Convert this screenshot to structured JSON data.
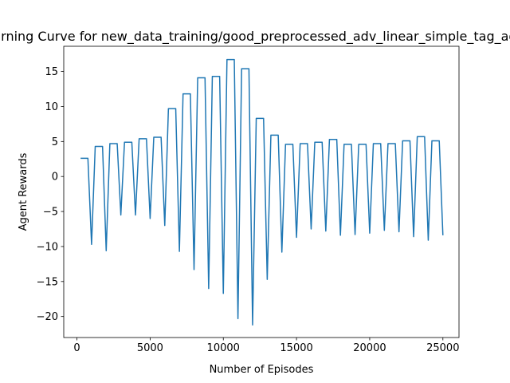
{
  "chart_data": {
    "type": "line",
    "title": "Learning Curve for new_data_training/good_preprocessed_adv_linear_simple_tag_agents",
    "xlabel": "Number of Episodes",
    "ylabel": "Agent Rewards",
    "xlim": [
      -900,
      26100
    ],
    "ylim": [
      -23.0,
      18.6
    ],
    "grid": false,
    "legend": "none",
    "series_color": "#1f77b4",
    "x_ticks": [
      0,
      5000,
      10000,
      15000,
      20000,
      25000
    ],
    "x_tick_labels": [
      "0",
      "5000",
      "10000",
      "15000",
      "20000",
      "25000"
    ],
    "y_ticks": [
      -20,
      -15,
      -10,
      -5,
      0,
      5,
      10,
      15
    ],
    "y_tick_labels": [
      "−20",
      "−15",
      "−10",
      "−5",
      "0",
      "5",
      "10",
      "15"
    ],
    "series": [
      {
        "x": [
          250,
          750,
          1000,
          1250,
          1750,
          2000,
          2250,
          2750,
          3000,
          3250,
          3750,
          4000,
          4250,
          4750,
          5000,
          5250,
          5750,
          6000,
          6250,
          6750,
          7000,
          7250,
          7750,
          8000,
          8250,
          8750,
          9000,
          9250,
          9750,
          10000,
          10250,
          10750,
          11000,
          11250,
          11750,
          12000,
          12250,
          12750,
          13000,
          13250,
          13750,
          14000,
          14250,
          14750,
          15000,
          15250,
          15750,
          16000,
          16250,
          16750,
          17000,
          17250,
          17750,
          18000,
          18250,
          18750,
          19000,
          19250,
          19750,
          20000,
          20250,
          20750,
          21000,
          21250,
          21750,
          22000,
          22250,
          22750,
          23000,
          23250,
          23750,
          24000,
          24250,
          24750,
          25000
        ],
        "values": [
          2.6,
          2.6,
          -9.7,
          4.3,
          4.3,
          -10.6,
          4.7,
          4.7,
          -5.5,
          4.9,
          4.9,
          -5.5,
          5.4,
          5.4,
          -6.0,
          5.6,
          5.6,
          -7.0,
          9.7,
          9.7,
          -10.7,
          11.8,
          11.8,
          -13.3,
          14.1,
          14.1,
          -16.0,
          14.3,
          14.3,
          -16.7,
          16.7,
          16.7,
          -20.3,
          15.4,
          15.4,
          -21.2,
          8.3,
          8.3,
          -14.7,
          5.9,
          5.9,
          -10.8,
          4.6,
          4.6,
          -8.7,
          4.7,
          4.7,
          -7.5,
          4.9,
          4.9,
          -7.8,
          5.3,
          5.3,
          -8.4,
          4.6,
          4.6,
          -8.3,
          4.6,
          4.6,
          -8.1,
          4.7,
          4.7,
          -7.7,
          4.7,
          4.7,
          -7.9,
          5.1,
          5.1,
          -8.6,
          5.7,
          5.7,
          -9.1,
          5.1,
          5.1,
          -8.4
        ]
      }
    ]
  }
}
